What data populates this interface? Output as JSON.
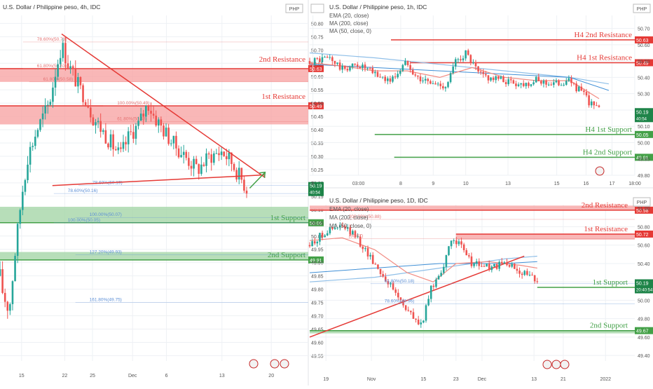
{
  "palette": {
    "up": "#26a69a",
    "down": "#ef5350",
    "res_line": "#e53935",
    "res_fill": "#f7a5a5",
    "sup_line": "#43a047",
    "sup_fill": "#a5d6a7",
    "fib": "#e57373",
    "fib_blue": "#5c8fd6",
    "ema": "#f28b82",
    "ma200": "#8fbfe8",
    "grid": "#eef1f4",
    "axis_text": "#555555",
    "price_tag": "#1e8449"
  },
  "charts": [
    {
      "id": "h4",
      "title": "U.S. Dollar / Philippine peso, 4h, IDC",
      "currency": "PHP",
      "legend": [],
      "price_badge": {
        "value": "50.19",
        "timer": "40:54"
      },
      "chart_data": {
        "type": "candlestick",
        "ylim": [
          49.53,
          50.83
        ],
        "yticks": [
          "50.80",
          "50.75",
          "50.70",
          "50.65",
          "50.60",
          "50.55",
          "50.50",
          "50.45",
          "50.40",
          "50.35",
          "50.30",
          "50.25",
          "50.20",
          "50.15",
          "50.10",
          "50.05",
          "50.00",
          "49.95",
          "49.90",
          "49.85",
          "49.80",
          "49.75",
          "49.70",
          "49.65",
          "49.60",
          "49.55"
        ],
        "xticks": [
          {
            "label": "15",
            "p": 0.07
          },
          {
            "label": "22",
            "p": 0.21
          },
          {
            "label": "25",
            "p": 0.3
          },
          {
            "label": "Dec",
            "p": 0.43
          },
          {
            "label": "6",
            "p": 0.54
          },
          {
            "label": "13",
            "p": 0.72
          },
          {
            "label": "20",
            "p": 0.88
          }
        ],
        "anchors": [
          [
            0,
            49.85
          ],
          [
            0.01,
            49.78
          ],
          [
            0.03,
            49.72
          ],
          [
            0.05,
            49.95
          ],
          [
            0.07,
            50.15
          ],
          [
            0.09,
            50.3
          ],
          [
            0.12,
            50.4
          ],
          [
            0.16,
            50.5
          ],
          [
            0.18,
            50.62
          ],
          [
            0.2,
            50.72
          ],
          [
            0.22,
            50.65
          ],
          [
            0.24,
            50.6
          ],
          [
            0.26,
            50.55
          ],
          [
            0.28,
            50.52
          ],
          [
            0.3,
            50.45
          ],
          [
            0.33,
            50.4
          ],
          [
            0.36,
            50.35
          ],
          [
            0.39,
            50.3
          ],
          [
            0.42,
            50.38
          ],
          [
            0.45,
            50.42
          ],
          [
            0.48,
            50.5
          ],
          [
            0.5,
            50.45
          ],
          [
            0.53,
            50.4
          ],
          [
            0.56,
            50.35
          ],
          [
            0.6,
            50.3
          ],
          [
            0.64,
            50.25
          ],
          [
            0.68,
            50.3
          ],
          [
            0.72,
            50.32
          ],
          [
            0.75,
            50.28
          ],
          [
            0.78,
            50.22
          ],
          [
            0.8,
            50.18
          ]
        ],
        "levels": [
          {
            "label": "2nd Resistance",
            "value": 50.63,
            "tag": "50.63",
            "kind": "res",
            "band": [
              50.58,
              50.63
            ]
          },
          {
            "label": "1st Resistance",
            "value": 50.49,
            "tag": "50.49",
            "kind": "res",
            "band": [
              50.42,
              50.49
            ]
          },
          {
            "label": "1st Support",
            "value": 50.05,
            "tag": "50.05",
            "kind": "sup",
            "band": [
              50.05,
              50.11
            ]
          },
          {
            "label": "2nd Support",
            "value": 49.91,
            "tag": "49.91",
            "kind": "sup",
            "band": [
              49.91,
              49.94
            ]
          }
        ],
        "fibs": [
          {
            "label": "78.60%(50.73)",
            "value": 50.73,
            "x": 0.12,
            "color": "red"
          },
          {
            "label": "61.80%(50.63)",
            "value": 50.63,
            "x": 0.12,
            "color": "red"
          },
          {
            "label": "61.80%(50.58)",
            "value": 50.58,
            "x": 0.14,
            "color": "red"
          },
          {
            "label": "100.00%(50.49)",
            "value": 50.49,
            "x": 0.38,
            "color": "red"
          },
          {
            "label": "61.80%(50.43)",
            "value": 50.43,
            "x": 0.38,
            "color": "red"
          },
          {
            "label": "78.60%(50.19)",
            "value": 50.19,
            "x": 0.3,
            "color": "blue"
          },
          {
            "label": "78.60%(50.16)",
            "value": 50.16,
            "x": 0.22,
            "color": "blue"
          },
          {
            "label": "100.00%(50.07)",
            "value": 50.07,
            "x": 0.29,
            "color": "blue"
          },
          {
            "label": "100.00%(50.05)",
            "value": 50.05,
            "x": 0.22,
            "color": "blue"
          },
          {
            "label": "127.20%(49.93)",
            "value": 49.93,
            "x": 0.29,
            "color": "blue"
          },
          {
            "label": "161.80%(49.75)",
            "value": 49.75,
            "x": 0.29,
            "color": "blue"
          }
        ],
        "trendlines": [
          [
            [
              0.2,
              50.76
            ],
            [
              0.86,
              50.22
            ]
          ],
          [
            [
              0.17,
              50.19
            ],
            [
              0.86,
              50.23
            ]
          ]
        ],
        "arrow": [
          [
            0.81,
            50.18
          ],
          [
            0.86,
            50.24
          ]
        ]
      }
    },
    {
      "id": "h1",
      "title": "U.S. Dollar / Philippine peso, 1h, IDC",
      "currency": "PHP",
      "legend": [
        "EMA (20, close)",
        "MA (200, close)",
        "MA (50, close, 0)"
      ],
      "price_badge": {
        "value": "50.19",
        "timer": "40:54"
      },
      "chart_data": {
        "type": "candlestick",
        "ylim": [
          49.8,
          50.78
        ],
        "yticks": [
          "50.70",
          "50.60",
          "50.50",
          "50.40",
          "50.30",
          "50.20",
          "50.10",
          "50.00",
          "49.90",
          "49.80"
        ],
        "xticks": [
          {
            "label": "6",
            "p": 0.01
          },
          {
            "label": "03:00",
            "p": 0.15
          },
          {
            "label": "8",
            "p": 0.28
          },
          {
            "label": "9",
            "p": 0.38
          },
          {
            "label": "10",
            "p": 0.48
          },
          {
            "label": "13",
            "p": 0.61
          },
          {
            "label": "15",
            "p": 0.76
          },
          {
            "label": "16",
            "p": 0.85
          },
          {
            "label": "17",
            "p": 0.93
          },
          {
            "label": "18:00",
            "p": 1.0
          }
        ],
        "anchors": [
          [
            0,
            50.5
          ],
          [
            0.06,
            50.52
          ],
          [
            0.1,
            50.45
          ],
          [
            0.15,
            50.48
          ],
          [
            0.2,
            50.42
          ],
          [
            0.25,
            50.38
          ],
          [
            0.3,
            50.5
          ],
          [
            0.33,
            50.4
          ],
          [
            0.38,
            50.36
          ],
          [
            0.42,
            50.35
          ],
          [
            0.45,
            50.5
          ],
          [
            0.48,
            50.55
          ],
          [
            0.52,
            50.42
          ],
          [
            0.55,
            50.4
          ],
          [
            0.6,
            50.38
          ],
          [
            0.65,
            50.36
          ],
          [
            0.7,
            50.38
          ],
          [
            0.75,
            50.36
          ],
          [
            0.8,
            50.38
          ],
          [
            0.84,
            50.3
          ],
          [
            0.86,
            50.25
          ],
          [
            0.89,
            50.2
          ]
        ],
        "ema20": [
          [
            0,
            50.49
          ],
          [
            0.1,
            50.47
          ],
          [
            0.2,
            50.44
          ],
          [
            0.3,
            50.44
          ],
          [
            0.4,
            50.4
          ],
          [
            0.5,
            50.46
          ],
          [
            0.6,
            50.4
          ],
          [
            0.7,
            50.38
          ],
          [
            0.8,
            50.38
          ],
          [
            0.89,
            50.27
          ]
        ],
        "ma200": [
          [
            0,
            50.55
          ],
          [
            0.2,
            50.52
          ],
          [
            0.4,
            50.48
          ],
          [
            0.6,
            50.44
          ],
          [
            0.8,
            50.4
          ],
          [
            0.92,
            50.36
          ]
        ],
        "ma50": [
          [
            0,
            50.48
          ],
          [
            0.2,
            50.46
          ],
          [
            0.4,
            50.44
          ],
          [
            0.6,
            50.42
          ],
          [
            0.8,
            50.4
          ],
          [
            0.92,
            50.32
          ]
        ],
        "levels": [
          {
            "label": "H4 2nd Resistance",
            "value": 50.63,
            "tag": "50.63",
            "kind": "res",
            "x0": 0.25
          },
          {
            "label": "H4 1st Resistance",
            "value": 50.49,
            "tag": "50.49",
            "kind": "res",
            "x0": 0.31
          },
          {
            "label": "H4 1st Support",
            "value": 50.05,
            "tag": "50.05",
            "kind": "sup",
            "x0": 0.2
          },
          {
            "label": "H4 2nd Support",
            "value": 49.91,
            "tag": "49.91",
            "kind": "sup",
            "x0": 0.26
          }
        ]
      }
    },
    {
      "id": "d1",
      "title": "U.S. Dollar / Philippine peso, 1D, IDC",
      "currency": "PHP",
      "legend": [
        "EMA (20, close)",
        "MA (200, close)",
        "MA (50, close, 0)"
      ],
      "price_badge": {
        "value": "50.19",
        "timer": "20:40:54"
      },
      "chart_data": {
        "type": "candlestick",
        "ylim": [
          49.34,
          51.04
        ],
        "yticks": [
          "51.00",
          "50.80",
          "50.60",
          "50.40",
          "50.20",
          "50.00",
          "49.80",
          "49.60",
          "49.40"
        ],
        "xticks": [
          {
            "label": "19",
            "p": 0.05
          },
          {
            "label": "Nov",
            "p": 0.19
          },
          {
            "label": "15",
            "p": 0.35
          },
          {
            "label": "23",
            "p": 0.45
          },
          {
            "label": "Dec",
            "p": 0.53
          },
          {
            "label": "13",
            "p": 0.69
          },
          {
            "label": "21",
            "p": 0.78
          },
          {
            "label": "2022",
            "p": 0.91
          }
        ],
        "anchors": [
          [
            0,
            50.6
          ],
          [
            0.05,
            50.75
          ],
          [
            0.1,
            50.8
          ],
          [
            0.14,
            50.7
          ],
          [
            0.18,
            50.5
          ],
          [
            0.22,
            50.3
          ],
          [
            0.26,
            50.1
          ],
          [
            0.3,
            49.9
          ],
          [
            0.33,
            49.75
          ],
          [
            0.35,
            49.78
          ],
          [
            0.37,
            50.1
          ],
          [
            0.4,
            50.3
          ],
          [
            0.42,
            50.45
          ],
          [
            0.44,
            50.7
          ],
          [
            0.46,
            50.6
          ],
          [
            0.5,
            50.4
          ],
          [
            0.53,
            50.38
          ],
          [
            0.56,
            50.35
          ],
          [
            0.6,
            50.4
          ],
          [
            0.63,
            50.35
          ],
          [
            0.66,
            50.3
          ],
          [
            0.69,
            50.22
          ],
          [
            0.7,
            50.19
          ]
        ],
        "ema20": [
          [
            0,
            50.65
          ],
          [
            0.1,
            50.68
          ],
          [
            0.2,
            50.55
          ],
          [
            0.3,
            50.3
          ],
          [
            0.38,
            50.2
          ],
          [
            0.45,
            50.4
          ],
          [
            0.55,
            50.42
          ],
          [
            0.65,
            50.38
          ],
          [
            0.7,
            50.35
          ]
        ],
        "ma200": [
          [
            0,
            50.2
          ],
          [
            0.2,
            50.25
          ],
          [
            0.4,
            50.35
          ],
          [
            0.6,
            50.45
          ],
          [
            0.7,
            50.48
          ]
        ],
        "ma50": [
          [
            0,
            50.3
          ],
          [
            0.2,
            50.35
          ],
          [
            0.4,
            50.4
          ],
          [
            0.6,
            50.4
          ],
          [
            0.7,
            50.42
          ]
        ],
        "levels": [
          {
            "label": "2nd Resistance",
            "value": 50.98,
            "tag": "50.98",
            "kind": "res",
            "band": [
              50.98,
              51.03
            ]
          },
          {
            "label": "1st Resistance",
            "value": 50.72,
            "tag": "50.72",
            "kind": "res",
            "band": [
              50.66,
              50.72
            ],
            "x0": 0.45
          },
          {
            "label": "1st Support",
            "value": 50.14,
            "tag": "50.14",
            "kind": "sup",
            "x0": 0.7
          },
          {
            "label": "2nd Support",
            "value": 49.67,
            "tag": "49.67",
            "kind": "sup",
            "band": [
              49.64,
              49.67
            ]
          }
        ],
        "fibs": [
          {
            "label": "200.00%(50.88)",
            "value": 50.88,
            "x": 0.12,
            "color": "red"
          },
          {
            "label": "(50.67)",
            "value": 50.67,
            "x": 0.12,
            "color": "red"
          },
          {
            "label": "61.80%(50.18)",
            "value": 50.18,
            "x": 0.23,
            "color": "blue"
          },
          {
            "label": "78.60%(49.96)",
            "value": 49.96,
            "x": 0.23,
            "color": "blue"
          }
        ],
        "trendlines": [
          [
            [
              0,
              49.6
            ],
            [
              0.66,
              50.48
            ]
          ]
        ]
      }
    }
  ]
}
